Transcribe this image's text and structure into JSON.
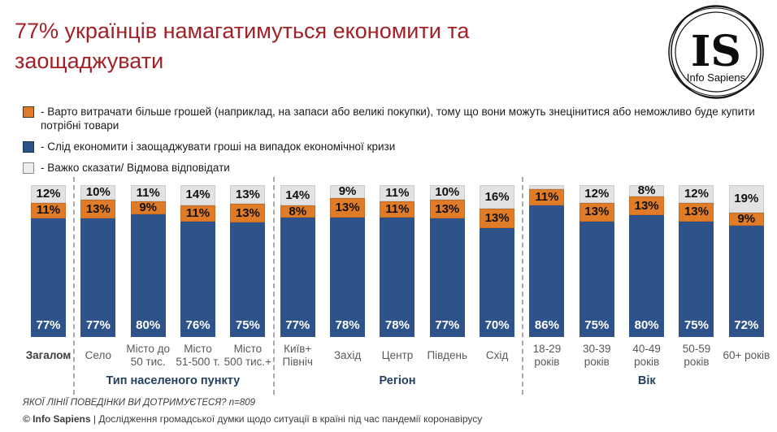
{
  "title": "77% українців намагатимуться економити та заощаджувати",
  "logo": {
    "initials": "IS",
    "name": "Info Sapiens"
  },
  "colors": {
    "title_red": "#a32126",
    "save_blue": "#2e538a",
    "spend_orange": "#e07b28",
    "dk_gray": "#e2e2e2",
    "divider_gray": "#a9a9a9",
    "group_label_navy": "#24405f"
  },
  "chart_data": {
    "type": "bar",
    "stacked": true,
    "unit": "%",
    "ylim": [
      0,
      100
    ],
    "legend_position": "top-left",
    "legend": [
      {
        "key": "spend",
        "color": "#e07b28",
        "border": "#4d3319",
        "label": "- Варто витрачати більше грошей (наприклад, на запаси або великі покупки), тому що вони можуть знецінитися або неможливо буде купити потрібні товари"
      },
      {
        "key": "save",
        "color": "#2e538a",
        "border": "#1c3357",
        "label": "- Слід економити і заощаджувати гроші на випадок економічної кризи"
      },
      {
        "key": "dk",
        "color": "#ededed",
        "border": "#8c8c8c",
        "label": "- Важко сказати/ Відмова відповідати"
      }
    ],
    "groups": [
      {
        "label": "Тип населеного пункту",
        "start": 1,
        "end": 4
      },
      {
        "label": "Регіон",
        "start": 5,
        "end": 9
      },
      {
        "label": "Вік",
        "start": 10,
        "end": 14
      }
    ],
    "divider_after": [
      0,
      4,
      9
    ],
    "bars": [
      {
        "label": "Загалом",
        "bold": true,
        "save": 77,
        "spend": 11,
        "dk": 12
      },
      {
        "label": "Село",
        "bold": false,
        "save": 77,
        "spend": 13,
        "dk": 10
      },
      {
        "label": "Місто до\n50 тис.",
        "bold": false,
        "save": 80,
        "spend": 9,
        "dk": 11
      },
      {
        "label": "Місто\n51-500 т.",
        "bold": false,
        "save": 76,
        "spend": 11,
        "dk": 14
      },
      {
        "label": "Місто\n500 тис.+",
        "bold": false,
        "save": 75,
        "spend": 13,
        "dk": 13
      },
      {
        "label": "Київ+\nПівніч",
        "bold": false,
        "save": 77,
        "spend": 8,
        "dk": 14
      },
      {
        "label": "Захід",
        "bold": false,
        "save": 78,
        "spend": 13,
        "dk": 9
      },
      {
        "label": "Центр",
        "bold": false,
        "save": 78,
        "spend": 11,
        "dk": 11
      },
      {
        "label": "Південь",
        "bold": false,
        "save": 77,
        "spend": 13,
        "dk": 10
      },
      {
        "label": "Схід",
        "bold": false,
        "save": 70,
        "spend": 13,
        "dk": 16
      },
      {
        "label": "18-29\nроків",
        "bold": false,
        "save": 86,
        "spend": 11,
        "dk": 3,
        "dk_label_hidden": true
      },
      {
        "label": "30-39\nроків",
        "bold": false,
        "save": 75,
        "spend": 13,
        "dk": 12
      },
      {
        "label": "40-49\nроків",
        "bold": false,
        "save": 80,
        "spend": 13,
        "dk": 8
      },
      {
        "label": "50-59\nроків",
        "bold": false,
        "save": 75,
        "spend": 13,
        "dk": 12
      },
      {
        "label": "60+ років",
        "bold": false,
        "save": 72,
        "spend": 9,
        "dk": 19
      }
    ]
  },
  "footer": {
    "question": "ЯКОЇ ЛІНІЇ ПОВЕДІНКИ ВИ ДОТРИМУЄТЕСЯ? n=809",
    "brand": "© Info Sapiens",
    "separator": "|",
    "description": "Дослідження громадської думки щодо ситуації в країні під час пандемії коронавірусу"
  }
}
